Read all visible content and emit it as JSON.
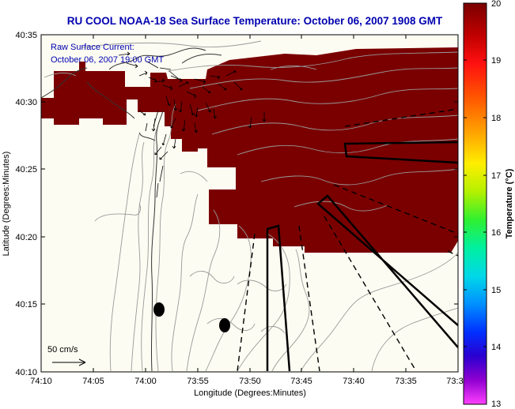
{
  "title": "RU COOL  NOAA-18  Sea Surface Temperature:  October 06, 2007 1908 GMT",
  "current_label_line1": "Raw Surface Current:",
  "current_label_line2": "October 06, 2007 19:00 GMT",
  "scale_arrow_label": "50 cm/s",
  "x_axis": {
    "label": "Longitude (Degrees:Minutes)",
    "ticks": [
      "74:10",
      "74:05",
      "74:00",
      "73:55",
      "73:50",
      "73:45",
      "73:40",
      "73:35",
      "73:3"
    ]
  },
  "y_axis": {
    "label": "Latitude (Degrees:Minutes)",
    "ticks": [
      "40:35",
      "40:30",
      "40:25",
      "40:20",
      "40:15",
      "40:10"
    ]
  },
  "colorbar": {
    "label": "Temperature (°C)",
    "ticks": [
      "20",
      "19",
      "18",
      "17",
      "16",
      "15",
      "14",
      "13"
    ],
    "min": 13,
    "max": 20
  },
  "colors": {
    "sst_patch": "#7a0000",
    "title": "#0000b0",
    "contour": "#9a9a9a"
  }
}
